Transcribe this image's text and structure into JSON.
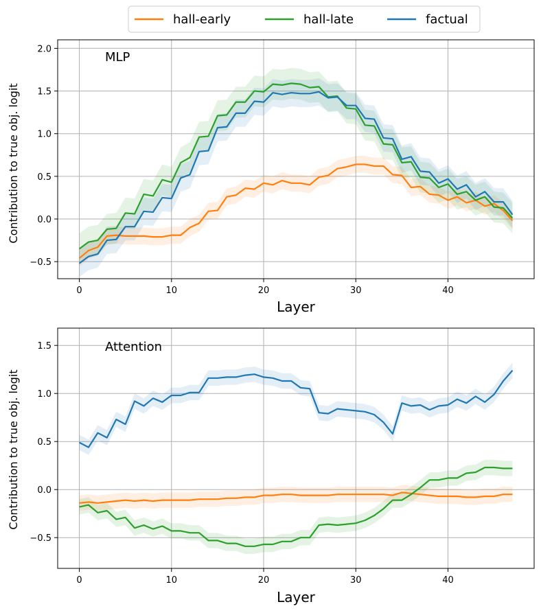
{
  "legend": [
    "hall-early",
    "hall-late",
    "factual"
  ],
  "colors": {
    "hall-early": "#ff7f0e",
    "hall-late": "#2ca02c",
    "factual": "#1f77b4"
  },
  "chart_data": [
    {
      "type": "line",
      "title": "MLP",
      "xlabel": "Layer",
      "ylabel": "Contribution to true obj. logit",
      "xlim": [
        -2.35,
        49.35
      ],
      "ylim": [
        -0.7,
        2.1
      ],
      "xticks": [
        0,
        10,
        20,
        30,
        40
      ],
      "yticks": [
        -0.5,
        0.0,
        0.5,
        1.0,
        1.5,
        2.0
      ],
      "ytick_labels": [
        "−0.5",
        "0.0",
        "0.5",
        "1.0",
        "1.5",
        "2.0"
      ],
      "grid": true,
      "series": [
        {
          "name": "hall-early",
          "values": [
            -0.46,
            -0.37,
            -0.33,
            -0.2,
            -0.19,
            -0.2,
            -0.2,
            -0.2,
            -0.21,
            -0.21,
            -0.19,
            -0.19,
            -0.1,
            -0.05,
            0.09,
            0.1,
            0.26,
            0.28,
            0.36,
            0.35,
            0.42,
            0.4,
            0.45,
            0.42,
            0.42,
            0.4,
            0.49,
            0.51,
            0.59,
            0.61,
            0.64,
            0.64,
            0.62,
            0.62,
            0.52,
            0.51,
            0.37,
            0.38,
            0.29,
            0.28,
            0.22,
            0.26,
            0.19,
            0.22,
            0.15,
            0.18,
            0.1,
            -0.02
          ],
          "band": 0.1
        },
        {
          "name": "hall-late",
          "values": [
            -0.35,
            -0.27,
            -0.25,
            -0.12,
            -0.11,
            0.07,
            0.06,
            0.29,
            0.27,
            0.46,
            0.43,
            0.66,
            0.72,
            0.96,
            0.97,
            1.21,
            1.22,
            1.37,
            1.37,
            1.5,
            1.49,
            1.58,
            1.57,
            1.59,
            1.58,
            1.54,
            1.55,
            1.43,
            1.44,
            1.3,
            1.29,
            1.1,
            1.09,
            0.88,
            0.87,
            0.66,
            0.67,
            0.49,
            0.48,
            0.37,
            0.41,
            0.29,
            0.32,
            0.22,
            0.26,
            0.14,
            0.13,
            0.01
          ],
          "band": 0.18
        },
        {
          "name": "factual",
          "values": [
            -0.52,
            -0.44,
            -0.41,
            -0.25,
            -0.24,
            -0.09,
            -0.09,
            0.09,
            0.08,
            0.25,
            0.24,
            0.48,
            0.52,
            0.79,
            0.8,
            1.07,
            1.08,
            1.24,
            1.24,
            1.38,
            1.37,
            1.48,
            1.46,
            1.48,
            1.47,
            1.47,
            1.49,
            1.42,
            1.43,
            1.33,
            1.33,
            1.18,
            1.17,
            0.95,
            0.94,
            0.7,
            0.73,
            0.56,
            0.55,
            0.42,
            0.47,
            0.35,
            0.4,
            0.26,
            0.32,
            0.2,
            0.2,
            0.05
          ],
          "band": 0.16
        }
      ]
    },
    {
      "type": "line",
      "title": "Attention",
      "xlabel": "Layer",
      "ylabel": "Contribution to true obj. logit",
      "xlim": [
        -2.35,
        49.35
      ],
      "ylim": [
        -0.82,
        1.68
      ],
      "xticks": [
        0,
        10,
        20,
        30,
        40
      ],
      "yticks": [
        -0.5,
        0.0,
        0.5,
        1.0,
        1.5
      ],
      "ytick_labels": [
        "−0.5",
        "0.0",
        "0.5",
        "1.0",
        "1.5"
      ],
      "grid": true,
      "series": [
        {
          "name": "hall-early",
          "values": [
            -0.14,
            -0.13,
            -0.14,
            -0.13,
            -0.12,
            -0.11,
            -0.12,
            -0.11,
            -0.12,
            -0.11,
            -0.11,
            -0.11,
            -0.11,
            -0.1,
            -0.1,
            -0.1,
            -0.09,
            -0.09,
            -0.08,
            -0.08,
            -0.06,
            -0.06,
            -0.05,
            -0.05,
            -0.06,
            -0.06,
            -0.06,
            -0.06,
            -0.05,
            -0.05,
            -0.05,
            -0.05,
            -0.05,
            -0.05,
            -0.06,
            -0.03,
            -0.04,
            -0.05,
            -0.06,
            -0.07,
            -0.07,
            -0.07,
            -0.08,
            -0.08,
            -0.07,
            -0.07,
            -0.05,
            -0.05
          ],
          "band": 0.08
        },
        {
          "name": "hall-late",
          "values": [
            -0.18,
            -0.16,
            -0.24,
            -0.22,
            -0.31,
            -0.29,
            -0.4,
            -0.37,
            -0.41,
            -0.38,
            -0.43,
            -0.43,
            -0.45,
            -0.45,
            -0.53,
            -0.53,
            -0.56,
            -0.56,
            -0.59,
            -0.59,
            -0.57,
            -0.57,
            -0.54,
            -0.54,
            -0.5,
            -0.5,
            -0.37,
            -0.36,
            -0.37,
            -0.36,
            -0.35,
            -0.32,
            -0.27,
            -0.2,
            -0.11,
            -0.11,
            -0.05,
            0.02,
            0.1,
            0.1,
            0.12,
            0.12,
            0.17,
            0.18,
            0.23,
            0.23,
            0.22,
            0.22
          ],
          "band": 0.08
        },
        {
          "name": "factual",
          "values": [
            0.49,
            0.44,
            0.59,
            0.54,
            0.73,
            0.68,
            0.92,
            0.87,
            0.95,
            0.91,
            0.98,
            0.98,
            1.01,
            1.01,
            1.16,
            1.16,
            1.17,
            1.17,
            1.19,
            1.2,
            1.17,
            1.16,
            1.13,
            1.13,
            1.06,
            1.05,
            0.8,
            0.79,
            0.84,
            0.83,
            0.82,
            0.81,
            0.78,
            0.7,
            0.58,
            0.9,
            0.87,
            0.88,
            0.83,
            0.87,
            0.88,
            0.94,
            0.9,
            0.97,
            0.91,
            0.99,
            1.13,
            1.24
          ],
          "band": 0.08
        }
      ]
    }
  ]
}
